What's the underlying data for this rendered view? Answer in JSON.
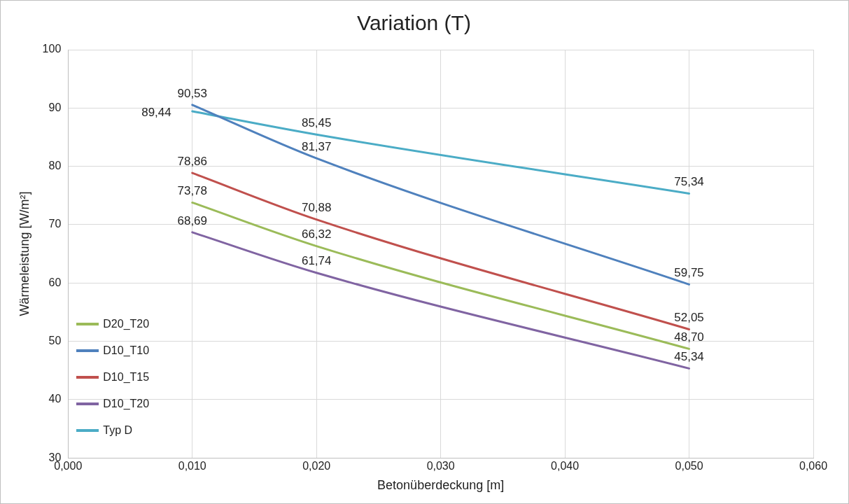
{
  "chart_data": {
    "type": "line",
    "title": "Variation (T)",
    "xlabel": "Betonüberdeckung [m]",
    "ylabel": "Wärmeleistung [W/m²]",
    "x": [
      0.01,
      0.02,
      0.05
    ],
    "xlim": [
      0,
      0.06
    ],
    "xticks": [
      {
        "value": 0,
        "label": "0,000"
      },
      {
        "value": 0.01,
        "label": "0,010"
      },
      {
        "value": 0.02,
        "label": "0,020"
      },
      {
        "value": 0.03,
        "label": "0,030"
      },
      {
        "value": 0.04,
        "label": "0,040"
      },
      {
        "value": 0.05,
        "label": "0,050"
      },
      {
        "value": 0.06,
        "label": "0,060"
      }
    ],
    "ylim": [
      30,
      100
    ],
    "yticks": [
      30,
      40,
      50,
      60,
      70,
      80,
      90,
      100
    ],
    "grid": true,
    "legend": "bottom left",
    "marker": "none",
    "line_style": "solid",
    "series": [
      {
        "name": "D20_T20",
        "color": "#9bbb59",
        "values": [
          73.78,
          66.32,
          48.7
        ],
        "value_labels": [
          "73,78",
          "66,32",
          "48,70"
        ]
      },
      {
        "name": "D10_T10",
        "color": "#4f81bd",
        "values": [
          90.53,
          81.37,
          59.75
        ],
        "value_labels": [
          "90,53",
          "81,37",
          "59,75"
        ]
      },
      {
        "name": "D10_T15",
        "color": "#c0504d",
        "values": [
          78.86,
          70.88,
          52.05
        ],
        "value_labels": [
          "78,86",
          "70,88",
          "52,05"
        ]
      },
      {
        "name": "D10_T20",
        "color": "#8064a2",
        "values": [
          68.69,
          61.74,
          45.34
        ],
        "value_labels": [
          "68,69",
          "61,74",
          "45,34"
        ]
      },
      {
        "name": "Typ D",
        "color": "#4bacc6",
        "values": [
          89.44,
          85.45,
          75.34
        ],
        "value_labels": [
          "89,44",
          "85,45",
          "75,34"
        ]
      }
    ]
  }
}
